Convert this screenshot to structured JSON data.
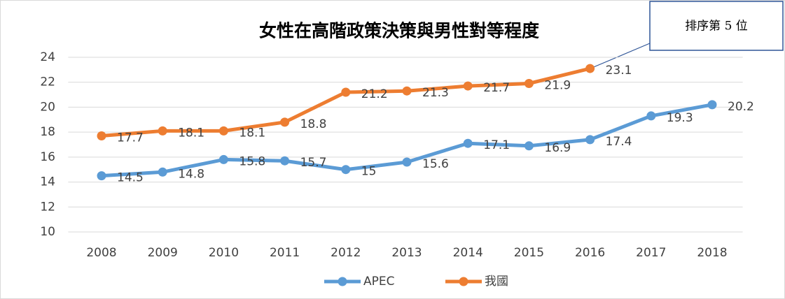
{
  "chart_data": {
    "type": "line",
    "title": "女性在高階政策決策與男性對等程度",
    "categories": [
      "2008",
      "2009",
      "2010",
      "2011",
      "2012",
      "2013",
      "2014",
      "2015",
      "2016",
      "2017",
      "2018"
    ],
    "series": [
      {
        "name": "APEC",
        "color": "#5b9bd5",
        "values": [
          14.5,
          14.8,
          15.8,
          15.7,
          15,
          15.6,
          17.1,
          16.9,
          17.4,
          19.3,
          20.2
        ]
      },
      {
        "name": "我國",
        "color": "#ed7d31",
        "values": [
          17.7,
          18.1,
          18.1,
          18.8,
          21.2,
          21.3,
          21.7,
          21.9,
          23.1,
          null,
          null
        ]
      }
    ],
    "ylim": [
      10,
      24
    ],
    "yticks": [
      10,
      12,
      14,
      16,
      18,
      20,
      22,
      24
    ],
    "grid": true,
    "legend": "bottom",
    "annotation": "排序第 5 位"
  }
}
